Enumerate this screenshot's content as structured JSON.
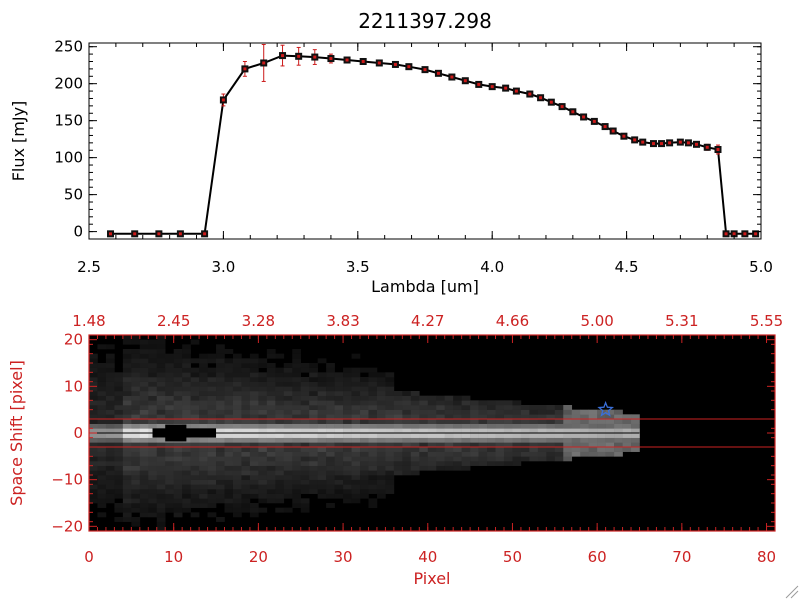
{
  "chart_data": [
    {
      "type": "line",
      "title": "2211397.298",
      "xlabel": "Lambda [um]",
      "ylabel": "Flux [mJy]",
      "xlim": [
        2.5,
        5.0
      ],
      "ylim": [
        -10,
        255
      ],
      "x_ticks": [
        2.5,
        3.0,
        3.5,
        4.0,
        4.5,
        5.0
      ],
      "x_tick_labels": [
        "2.5",
        "3.0",
        "3.5",
        "4.0",
        "4.5",
        "5.0"
      ],
      "y_ticks": [
        0,
        50,
        100,
        150,
        200,
        250
      ],
      "y_tick_labels": [
        "0",
        "50",
        "100",
        "150",
        "200",
        "250"
      ],
      "grid": false,
      "line_color": "#000000",
      "marker_color": "#cc1a1a",
      "errorbar_color": "#cc1a1a",
      "series": [
        {
          "x": [
            2.58,
            2.67,
            2.76,
            2.84,
            2.93,
            3.0,
            3.08,
            3.15,
            3.22,
            3.28,
            3.34,
            3.4,
            3.46,
            3.52,
            3.58,
            3.64,
            3.69,
            3.75,
            3.8,
            3.85,
            3.9,
            3.95,
            4.0,
            4.05,
            4.09,
            4.14,
            4.18,
            4.22,
            4.26,
            4.3,
            4.34,
            4.38,
            4.42,
            4.45,
            4.49,
            4.53,
            4.56,
            4.6,
            4.63,
            4.66,
            4.7,
            4.73,
            4.76,
            4.8,
            4.84,
            4.87,
            4.9,
            4.94,
            4.98
          ],
          "y": [
            -3,
            -3,
            -3,
            -3,
            -3,
            178,
            220,
            228,
            238,
            237,
            236,
            234,
            232,
            230,
            228,
            226,
            223,
            219,
            214,
            209,
            204,
            199,
            196,
            194,
            190,
            186,
            181,
            175,
            169,
            162,
            155,
            149,
            142,
            136,
            129,
            124,
            121,
            119,
            119,
            120,
            121,
            120,
            118,
            114,
            111,
            -3,
            -3,
            -3,
            -3
          ],
          "yerr": [
            0,
            0,
            0,
            0,
            0,
            8,
            10,
            25,
            14,
            12,
            10,
            6,
            3,
            3,
            3,
            3,
            3,
            3,
            3,
            3,
            3,
            3,
            3,
            3,
            3,
            3,
            3,
            3,
            3,
            3,
            3,
            3,
            3,
            3,
            3,
            3,
            3,
            3,
            3,
            3,
            3,
            3,
            3,
            4,
            6,
            0,
            0,
            0,
            0
          ]
        }
      ]
    },
    {
      "type": "heatmap",
      "xlabel": "Pixel",
      "ylabel": "Space Shift [pixel]",
      "xlim": [
        0,
        81
      ],
      "ylim": [
        -21,
        21
      ],
      "x_ticks": [
        0,
        10,
        20,
        30,
        40,
        50,
        60,
        70,
        80
      ],
      "x_tick_labels": [
        "0",
        "10",
        "20",
        "30",
        "40",
        "50",
        "60",
        "70",
        "80"
      ],
      "y_ticks": [
        -20,
        -10,
        0,
        10,
        20
      ],
      "y_tick_labels": [
        "−20",
        "−10",
        "0",
        "10",
        "20"
      ],
      "top_axis_tick_labels": [
        "1.48",
        "2.45",
        "3.28",
        "3.83",
        "4.27",
        "4.66",
        "5.00",
        "5.31",
        "5.55"
      ],
      "colormap": "grayscale",
      "axis_color": "#cc2222",
      "horizontal_lines": [
        3,
        -3
      ],
      "horizontal_line_color": "#cc2222",
      "center_line": 0,
      "star_marker": {
        "x": 61,
        "y": 5,
        "color": "#3a6fd8"
      },
      "signal_extent_pixels": [
        0,
        65
      ],
      "dark_blob": {
        "x_range": [
          7.5,
          15
        ],
        "y_range": [
          -1,
          1
        ]
      }
    }
  ]
}
